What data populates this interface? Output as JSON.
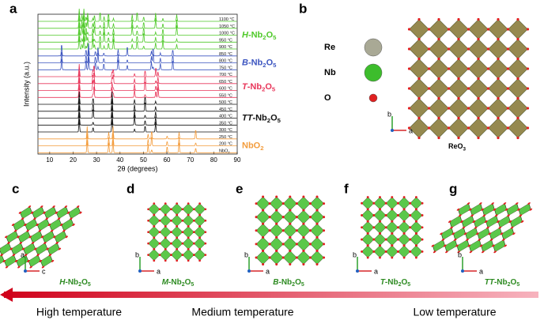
{
  "panel_a": {
    "letter": "a",
    "y_label": "Intensity (a.u.)",
    "x_label": "2θ (degrees)",
    "xlim": [
      5,
      90
    ],
    "xticks": [
      10,
      20,
      30,
      40,
      50,
      60,
      70,
      80,
      90
    ],
    "groups": [
      {
        "label": {
          "italic": "H",
          "text": [
            "-Nb",
            "2",
            "O",
            "5"
          ]
        },
        "color": "#4fc929",
        "peaks": [
          22.6,
          23.8,
          24.6,
          25.5,
          26.2,
          28.4,
          29.1,
          31.5,
          33.2,
          35.1,
          37.2,
          45.2,
          47.3,
          50.1,
          55.2,
          58.3,
          64.2
        ],
        "curves": [
          [
            "1100 °C"
          ],
          [
            "1050 °C"
          ],
          [
            "1000 °C"
          ],
          [
            "950 °C"
          ],
          [
            "900 °C"
          ]
        ]
      },
      {
        "label": {
          "italic": "B",
          "text": [
            "-Nb",
            "2",
            "O",
            "5"
          ]
        },
        "color": "#3c55c0",
        "peaks": [
          15.1,
          25.5,
          26.6,
          29.5,
          30.6,
          33.1,
          39.2,
          43.1,
          53.4,
          54.1,
          57.2,
          62.5
        ],
        "curves": [
          [
            "850 °C"
          ],
          [
            "800 °C"
          ],
          [
            "750 °C"
          ]
        ]
      },
      {
        "label": {
          "italic": "T",
          "text": [
            "-Nb",
            "2",
            "O",
            "5"
          ]
        },
        "color": "#e8365a",
        "peaks": [
          22.6,
          28.4,
          28.9,
          36.6,
          37.1,
          46.2,
          50.7,
          55.3,
          56.2
        ],
        "curves": [
          [
            "700 °C"
          ],
          [
            "650 °C"
          ],
          [
            "600 °C"
          ],
          [
            "550 °C"
          ]
        ]
      },
      {
        "label": {
          "italic": "TT",
          "text": [
            "-Nb",
            "2",
            "O",
            "5"
          ]
        },
        "color": "#111111",
        "peaks": [
          22.6,
          28.5,
          36.6,
          46.2,
          50.7,
          55.2
        ],
        "curves": [
          [
            "500 °C"
          ],
          [
            "450 °C"
          ],
          [
            "400 °C"
          ],
          [
            "350 °C"
          ],
          [
            "300 °C"
          ]
        ]
      },
      {
        "label": {
          "text": [
            "NbO",
            "2"
          ]
        },
        "color": "#f39c3c",
        "peaks": [
          26.0,
          35.2,
          37.0,
          52.0,
          53.5,
          60.1,
          65.2,
          72.3
        ],
        "curves": [
          [
            "250 °C"
          ],
          [
            "200 °C"
          ],
          [
            "NbO",
            "2"
          ]
        ]
      }
    ]
  },
  "panel_b": {
    "letter": "b",
    "legend": [
      {
        "label": "Re",
        "color": "#a9a995"
      },
      {
        "label": "Nb",
        "color": "#3dbd2c"
      },
      {
        "label": "O",
        "color": "#e02020"
      }
    ],
    "axes": [
      "b",
      "a"
    ],
    "caption": {
      "text": [
        "ReO",
        "3"
      ]
    }
  },
  "structures": [
    {
      "letter": "c",
      "axes": [
        "a",
        "c"
      ],
      "caption": {
        "italic": "H",
        "text": [
          "-Nb",
          "2",
          "O",
          "5"
        ]
      }
    },
    {
      "letter": "d",
      "axes": [
        "b",
        "a"
      ],
      "caption": {
        "italic": "M",
        "text": [
          "-Nb",
          "2",
          "O",
          "5"
        ]
      }
    },
    {
      "letter": "e",
      "axes": [
        "b",
        "a"
      ],
      "caption": {
        "italic": "B",
        "text": [
          "-Nb",
          "2",
          "O",
          "5"
        ]
      }
    },
    {
      "letter": "f",
      "axes": [
        "b",
        "a"
      ],
      "caption": {
        "italic": "T",
        "text": [
          "-Nb",
          "2",
          "O",
          "5"
        ]
      }
    },
    {
      "letter": "g",
      "axes": [
        "b",
        "a"
      ],
      "caption": {
        "italic": "TT",
        "text": [
          "-Nb",
          "2",
          "O",
          "5"
        ]
      }
    }
  ],
  "temperature_arrow": {
    "labels": [
      "High temperature",
      "Medium temperature",
      "Low temperature"
    ]
  }
}
